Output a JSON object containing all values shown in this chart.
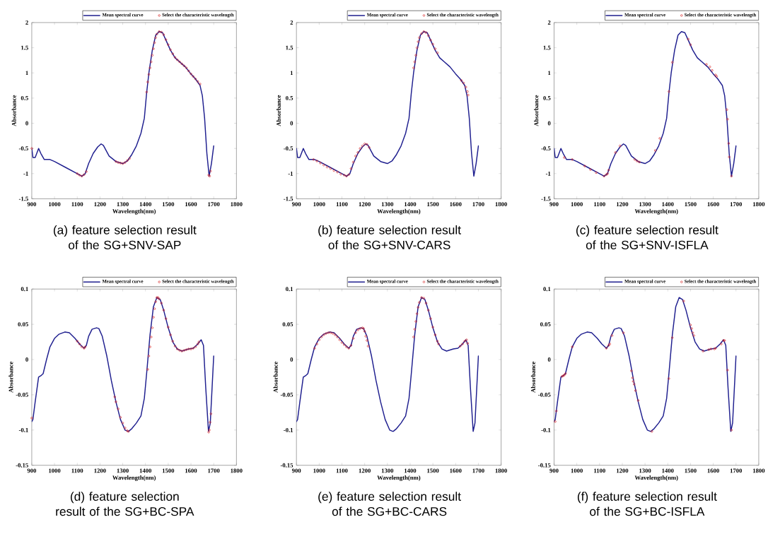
{
  "chart_data": [
    {
      "type": "line",
      "xlabel": "Wavelength(nm)",
      "ylabel": "Absorbance",
      "annotations": [
        "(a) feature selection result of the SG+SNV-SAP"
      ],
      "xlim": [
        900,
        1800
      ],
      "xticks": [
        900,
        1000,
        1100,
        1200,
        1300,
        1400,
        1500,
        1600,
        1700,
        1800
      ],
      "ylim": [
        -1.5,
        2
      ],
      "yticks": [
        -1.5,
        -1,
        -0.5,
        0,
        0.5,
        1,
        1.5,
        2
      ],
      "legend": "top right",
      "series": [
        {
          "name": "Mean spectral curve",
          "color": "#1f1f8f",
          "marker": "none",
          "line_style": "solid",
          "x": [
            900,
            905,
            915,
            930,
            940,
            955,
            980,
            1000,
            1050,
            1100,
            1120,
            1135,
            1150,
            1170,
            1190,
            1205,
            1215,
            1240,
            1270,
            1300,
            1320,
            1340,
            1360,
            1380,
            1395,
            1405,
            1415,
            1430,
            1445,
            1460,
            1475,
            1490,
            1510,
            1530,
            1550,
            1575,
            1600,
            1620,
            1640,
            1650,
            1660,
            1670,
            1680,
            1690,
            1700
          ],
          "values": [
            -0.5,
            -0.68,
            -0.68,
            -0.5,
            -0.6,
            -0.72,
            -0.72,
            -0.76,
            -0.88,
            -1.0,
            -1.05,
            -1.0,
            -0.8,
            -0.6,
            -0.47,
            -0.41,
            -0.44,
            -0.65,
            -0.76,
            -0.8,
            -0.75,
            -0.62,
            -0.45,
            -0.2,
            0.1,
            0.6,
            1.0,
            1.45,
            1.75,
            1.82,
            1.8,
            1.65,
            1.45,
            1.3,
            1.22,
            1.12,
            0.98,
            0.88,
            0.75,
            0.55,
            0.1,
            -0.6,
            -1.05,
            -0.8,
            -0.45
          ]
        },
        {
          "name": "Select the characteristic wavelength",
          "type": "scatter",
          "color": "#d62020",
          "marker": "circle",
          "x": [
            900,
            1100,
            1110,
            1120,
            1130,
            1140,
            1270,
            1280,
            1290,
            1300,
            1310,
            1320,
            1330,
            1405,
            1410,
            1415,
            1420,
            1425,
            1430,
            1435,
            1440,
            1445,
            1450,
            1460,
            1470,
            1480,
            1490,
            1500,
            1510,
            1520,
            1530,
            1540,
            1550,
            1560,
            1570,
            1580,
            1590,
            1600,
            1610,
            1620,
            1630,
            1640,
            1678,
            1682,
            1686
          ],
          "values": [
            -0.5,
            -1.0,
            -1.03,
            -1.05,
            -1.02,
            -0.96,
            -0.76,
            -0.78,
            -0.79,
            -0.8,
            -0.78,
            -0.74,
            -0.7,
            0.62,
            0.82,
            0.97,
            1.1,
            1.22,
            1.35,
            1.48,
            1.6,
            1.7,
            1.77,
            1.82,
            1.81,
            1.76,
            1.66,
            1.56,
            1.46,
            1.38,
            1.31,
            1.26,
            1.22,
            1.18,
            1.14,
            1.1,
            1.04,
            0.98,
            0.93,
            0.88,
            0.83,
            0.78,
            -1.03,
            -1.05,
            -0.95
          ]
        }
      ]
    },
    {
      "type": "line",
      "xlabel": "Wavelength(nm)",
      "ylabel": "Absorbance",
      "annotations": [
        "(b) feature selection result of the SG+SNV-CARS"
      ],
      "xlim": [
        900,
        1800
      ],
      "xticks": [
        900,
        1000,
        1100,
        1200,
        1300,
        1400,
        1500,
        1600,
        1700,
        1800
      ],
      "ylim": [
        -1.5,
        2
      ],
      "yticks": [
        -1.5,
        -1,
        -0.5,
        0,
        0.5,
        1,
        1.5,
        2
      ],
      "legend": "top right",
      "series": [
        {
          "name": "Mean spectral curve",
          "color": "#1f1f8f",
          "marker": "none",
          "line_style": "solid",
          "x": [
            900,
            905,
            915,
            930,
            940,
            955,
            980,
            1000,
            1050,
            1100,
            1120,
            1135,
            1150,
            1170,
            1190,
            1205,
            1215,
            1240,
            1270,
            1300,
            1320,
            1340,
            1360,
            1380,
            1395,
            1405,
            1415,
            1430,
            1445,
            1460,
            1475,
            1490,
            1510,
            1530,
            1550,
            1575,
            1600,
            1620,
            1640,
            1650,
            1660,
            1670,
            1680,
            1690,
            1700
          ],
          "values": [
            -0.5,
            -0.68,
            -0.68,
            -0.5,
            -0.6,
            -0.72,
            -0.72,
            -0.76,
            -0.88,
            -1.0,
            -1.05,
            -1.0,
            -0.8,
            -0.6,
            -0.47,
            -0.41,
            -0.44,
            -0.65,
            -0.76,
            -0.8,
            -0.75,
            -0.62,
            -0.45,
            -0.2,
            0.1,
            0.6,
            1.0,
            1.45,
            1.75,
            1.82,
            1.8,
            1.65,
            1.45,
            1.3,
            1.22,
            1.12,
            0.98,
            0.88,
            0.75,
            0.55,
            0.1,
            -0.6,
            -1.05,
            -0.8,
            -0.45
          ]
        },
        {
          "name": "Select the characteristic wavelength",
          "type": "scatter",
          "color": "#d62020",
          "marker": "circle",
          "x": [
            975,
            990,
            1005,
            1020,
            1035,
            1050,
            1065,
            1080,
            1095,
            1110,
            1120,
            1130,
            1140,
            1150,
            1160,
            1170,
            1180,
            1190,
            1200,
            1210,
            1220,
            1415,
            1420,
            1425,
            1430,
            1435,
            1440,
            1450,
            1460,
            1470,
            1480,
            1490,
            1500,
            1510,
            1520,
            1625,
            1635,
            1645,
            1652,
            1655
          ],
          "values": [
            -0.72,
            -0.75,
            -0.79,
            -0.83,
            -0.87,
            -0.9,
            -0.94,
            -0.97,
            -1.01,
            -1.03,
            -1.05,
            -1.02,
            -0.9,
            -0.77,
            -0.65,
            -0.58,
            -0.5,
            -0.45,
            -0.41,
            -0.42,
            -0.48,
            1.1,
            1.22,
            1.35,
            1.5,
            1.62,
            1.7,
            1.78,
            1.82,
            1.8,
            1.74,
            1.65,
            1.57,
            1.48,
            1.4,
            0.85,
            0.8,
            0.72,
            0.63,
            0.56
          ]
        }
      ]
    },
    {
      "type": "line",
      "xlabel": "Wavelength(nm)",
      "ylabel": "Absorbance",
      "annotations": [
        "(c) feature selection result of the SG+SNV-ISFLA"
      ],
      "xlim": [
        900,
        1800
      ],
      "xticks": [
        900,
        1000,
        1100,
        1200,
        1300,
        1400,
        1500,
        1600,
        1700,
        1800
      ],
      "ylim": [
        -1.5,
        2
      ],
      "yticks": [
        -1.5,
        -1,
        -0.5,
        0,
        0.5,
        1,
        1.5,
        2
      ],
      "legend": "top right",
      "series": [
        {
          "name": "Mean spectral curve",
          "color": "#1f1f8f",
          "marker": "none",
          "line_style": "solid",
          "x": [
            900,
            905,
            915,
            930,
            940,
            955,
            980,
            1000,
            1050,
            1100,
            1120,
            1135,
            1150,
            1170,
            1190,
            1205,
            1215,
            1240,
            1270,
            1300,
            1320,
            1340,
            1360,
            1380,
            1395,
            1405,
            1415,
            1430,
            1445,
            1460,
            1475,
            1490,
            1510,
            1530,
            1550,
            1575,
            1600,
            1620,
            1640,
            1650,
            1660,
            1670,
            1680,
            1690,
            1700
          ],
          "values": [
            -0.5,
            -0.68,
            -0.68,
            -0.5,
            -0.6,
            -0.72,
            -0.72,
            -0.76,
            -0.88,
            -1.0,
            -1.05,
            -1.0,
            -0.8,
            -0.6,
            -0.47,
            -0.41,
            -0.44,
            -0.65,
            -0.76,
            -0.8,
            -0.75,
            -0.62,
            -0.45,
            -0.2,
            0.1,
            0.6,
            1.0,
            1.45,
            1.75,
            1.82,
            1.8,
            1.65,
            1.45,
            1.3,
            1.22,
            1.12,
            0.98,
            0.88,
            0.75,
            0.55,
            0.1,
            -0.6,
            -1.05,
            -0.8,
            -0.45
          ]
        },
        {
          "name": "Select the characteristic wavelength",
          "type": "scatter",
          "color": "#d62020",
          "marker": "circle",
          "x": [
            945,
            980,
            1035,
            1060,
            1085,
            1120,
            1130,
            1135,
            1140,
            1170,
            1190,
            1255,
            1265,
            1275,
            1345,
            1365,
            1405,
            1420,
            1490,
            1500,
            1570,
            1585,
            1595,
            1610,
            1615,
            1660,
            1663,
            1668,
            1670,
            1680
          ],
          "values": [
            -0.68,
            -0.72,
            -0.85,
            -0.92,
            -0.98,
            -1.05,
            -1.02,
            -1.0,
            -0.93,
            -0.58,
            -0.45,
            -0.72,
            -0.75,
            -0.77,
            -0.54,
            -0.3,
            0.63,
            1.21,
            1.67,
            1.56,
            1.17,
            1.12,
            1.05,
            0.96,
            0.93,
            0.27,
            0.08,
            -0.4,
            -0.67,
            -1.05
          ]
        }
      ]
    },
    {
      "type": "line",
      "xlabel": "Wavelength(nm)",
      "ylabel": "Absorbance",
      "annotations": [
        "(d) feature selection result of the SG+BC-SPA"
      ],
      "xlim": [
        900,
        1800
      ],
      "xticks": [
        900,
        1000,
        1100,
        1200,
        1300,
        1400,
        1500,
        1600,
        1700,
        1800
      ],
      "ylim": [
        -0.15,
        0.1
      ],
      "yticks": [
        -0.15,
        -0.1,
        -0.05,
        0,
        0.05,
        0.1
      ],
      "legend": "top right",
      "series": [
        {
          "name": "Mean spectral curve",
          "color": "#1f1f8f",
          "marker": "none",
          "line_style": "solid",
          "x": [
            900,
            905,
            915,
            930,
            940,
            950,
            965,
            980,
            1000,
            1020,
            1045,
            1065,
            1090,
            1110,
            1130,
            1140,
            1150,
            1165,
            1185,
            1195,
            1210,
            1230,
            1250,
            1270,
            1290,
            1310,
            1325,
            1340,
            1360,
            1380,
            1395,
            1405,
            1420,
            1435,
            1450,
            1465,
            1480,
            1500,
            1520,
            1540,
            1560,
            1590,
            1610,
            1630,
            1645,
            1655,
            1665,
            1677,
            1685,
            1700
          ],
          "values": [
            -0.088,
            -0.085,
            -0.06,
            -0.025,
            -0.023,
            -0.02,
            0.0,
            0.018,
            0.03,
            0.036,
            0.039,
            0.038,
            0.03,
            0.022,
            0.016,
            0.02,
            0.033,
            0.043,
            0.045,
            0.044,
            0.033,
            0.005,
            -0.03,
            -0.06,
            -0.085,
            -0.1,
            -0.102,
            -0.098,
            -0.09,
            -0.08,
            -0.055,
            -0.02,
            0.035,
            0.075,
            0.088,
            0.085,
            0.07,
            0.045,
            0.025,
            0.015,
            0.012,
            0.015,
            0.016,
            0.022,
            0.028,
            0.02,
            -0.04,
            -0.102,
            -0.09,
            0.005
          ]
        },
        {
          "name": "Select the characteristic wavelength",
          "type": "scatter",
          "color": "#d62020",
          "marker": "circle",
          "x": [
            900,
            1100,
            1110,
            1120,
            1130,
            1135,
            1265,
            1270,
            1280,
            1290,
            1300,
            1310,
            1320,
            1325,
            1410,
            1415,
            1420,
            1425,
            1430,
            1435,
            1440,
            1445,
            1450,
            1455,
            1460,
            1470,
            1480,
            1490,
            1500,
            1510,
            1520,
            1530,
            1540,
            1550,
            1560,
            1570,
            1580,
            1590,
            1600,
            1610,
            1620,
            1630,
            1635,
            1678,
            1681,
            1684,
            1688
          ],
          "values": [
            -0.083,
            0.026,
            0.022,
            0.018,
            0.016,
            0.018,
            -0.053,
            -0.06,
            -0.07,
            -0.082,
            -0.09,
            -0.097,
            -0.101,
            -0.102,
            -0.014,
            0.005,
            0.018,
            0.032,
            0.045,
            0.06,
            0.072,
            0.082,
            0.088,
            0.088,
            0.086,
            0.08,
            0.07,
            0.058,
            0.046,
            0.035,
            0.026,
            0.019,
            0.015,
            0.013,
            0.012,
            0.013,
            0.014,
            0.015,
            0.015,
            0.016,
            0.018,
            0.022,
            0.025,
            -0.103,
            -0.1,
            -0.089,
            -0.077
          ]
        }
      ]
    },
    {
      "type": "line",
      "xlabel": "Wavelength(nm)",
      "ylabel": "Absorbance",
      "annotations": [
        "(e) feature selection result of the SG+BC-CARS"
      ],
      "xlim": [
        900,
        1800
      ],
      "xticks": [
        900,
        1000,
        1100,
        1200,
        1300,
        1400,
        1500,
        1600,
        1700,
        1800
      ],
      "ylim": [
        -0.15,
        0.1
      ],
      "yticks": [
        -0.15,
        -0.1,
        -0.05,
        0,
        0.05,
        0.1
      ],
      "legend": "top right",
      "series": [
        {
          "name": "Mean spectral curve",
          "color": "#1f1f8f",
          "marker": "none",
          "line_style": "solid",
          "x": [
            900,
            905,
            915,
            930,
            940,
            950,
            965,
            980,
            1000,
            1020,
            1045,
            1065,
            1090,
            1110,
            1130,
            1140,
            1150,
            1165,
            1185,
            1195,
            1210,
            1230,
            1250,
            1270,
            1290,
            1310,
            1325,
            1340,
            1360,
            1380,
            1395,
            1405,
            1420,
            1435,
            1450,
            1465,
            1480,
            1500,
            1520,
            1540,
            1560,
            1590,
            1610,
            1630,
            1645,
            1655,
            1665,
            1677,
            1685,
            1700
          ],
          "values": [
            -0.088,
            -0.085,
            -0.06,
            -0.025,
            -0.023,
            -0.02,
            0.0,
            0.018,
            0.03,
            0.036,
            0.039,
            0.038,
            0.03,
            0.022,
            0.016,
            0.02,
            0.033,
            0.043,
            0.045,
            0.044,
            0.033,
            0.005,
            -0.03,
            -0.06,
            -0.085,
            -0.1,
            -0.102,
            -0.098,
            -0.09,
            -0.08,
            -0.055,
            -0.02,
            0.035,
            0.075,
            0.088,
            0.085,
            0.07,
            0.045,
            0.025,
            0.015,
            0.012,
            0.015,
            0.016,
            0.022,
            0.028,
            0.02,
            -0.04,
            -0.102,
            -0.09,
            0.005
          ]
        },
        {
          "name": "Select the characteristic wavelength",
          "type": "scatter",
          "color": "#d62020",
          "marker": "circle",
          "x": [
            980,
            990,
            1000,
            1010,
            1020,
            1030,
            1040,
            1050,
            1060,
            1070,
            1080,
            1090,
            1100,
            1110,
            1120,
            1130,
            1140,
            1150,
            1160,
            1170,
            1180,
            1190,
            1195,
            1200,
            1205,
            1210,
            1215,
            1415,
            1420,
            1425,
            1430,
            1435,
            1440,
            1450,
            1460,
            1470,
            1480,
            1490,
            1500,
            1510,
            1520,
            1525,
            1620,
            1630,
            1640,
            1648,
            1653
          ],
          "values": [
            0.016,
            0.022,
            0.028,
            0.032,
            0.035,
            0.037,
            0.038,
            0.038,
            0.037,
            0.035,
            0.032,
            0.028,
            0.024,
            0.021,
            0.018,
            0.016,
            0.02,
            0.03,
            0.038,
            0.042,
            0.044,
            0.045,
            0.044,
            0.04,
            0.033,
            0.027,
            0.019,
            0.032,
            0.043,
            0.054,
            0.065,
            0.074,
            0.081,
            0.088,
            0.087,
            0.08,
            0.07,
            0.058,
            0.046,
            0.035,
            0.026,
            0.022,
            0.019,
            0.022,
            0.026,
            0.028,
            0.023
          ]
        }
      ]
    },
    {
      "type": "line",
      "xlabel": "Wavelength(nm)",
      "ylabel": "Absorbance",
      "annotations": [
        "(f) feature selection result of the SG+BC-ISFLA"
      ],
      "xlim": [
        900,
        1800
      ],
      "xticks": [
        900,
        1000,
        1100,
        1200,
        1300,
        1400,
        1500,
        1600,
        1700,
        1800
      ],
      "ylim": [
        -0.15,
        0.1
      ],
      "yticks": [
        -0.15,
        -0.1,
        -0.05,
        0,
        0.05,
        0.1
      ],
      "legend": "top right",
      "series": [
        {
          "name": "Mean spectral curve",
          "color": "#1f1f8f",
          "marker": "none",
          "line_style": "solid",
          "x": [
            900,
            905,
            915,
            930,
            940,
            950,
            965,
            980,
            1000,
            1020,
            1045,
            1065,
            1090,
            1110,
            1130,
            1140,
            1150,
            1165,
            1185,
            1195,
            1210,
            1230,
            1250,
            1270,
            1290,
            1310,
            1325,
            1340,
            1360,
            1380,
            1395,
            1405,
            1420,
            1435,
            1450,
            1465,
            1480,
            1500,
            1520,
            1540,
            1560,
            1590,
            1610,
            1630,
            1645,
            1655,
            1665,
            1677,
            1685,
            1700
          ],
          "values": [
            -0.088,
            -0.085,
            -0.06,
            -0.025,
            -0.023,
            -0.02,
            0.0,
            0.018,
            0.03,
            0.036,
            0.039,
            0.038,
            0.03,
            0.022,
            0.016,
            0.02,
            0.033,
            0.043,
            0.045,
            0.044,
            0.033,
            0.005,
            -0.03,
            -0.06,
            -0.085,
            -0.1,
            -0.102,
            -0.098,
            -0.09,
            -0.08,
            -0.055,
            -0.02,
            0.035,
            0.075,
            0.088,
            0.085,
            0.07,
            0.045,
            0.025,
            0.015,
            0.012,
            0.015,
            0.016,
            0.022,
            0.028,
            0.02,
            -0.04,
            -0.102,
            -0.09,
            0.005
          ]
        },
        {
          "name": "Select the characteristic wavelength",
          "type": "scatter",
          "color": "#d62020",
          "marker": "circle",
          "x": [
            905,
            910,
            935,
            940,
            945,
            950,
            980,
            1130,
            1140,
            1145,
            1155,
            1205,
            1240,
            1245,
            1248,
            1252,
            1258,
            1270,
            1330,
            1405,
            1420,
            1470,
            1500,
            1505,
            1510,
            1515,
            1555,
            1580,
            1590,
            1605,
            1610,
            1635,
            1645,
            1650,
            1663,
            1680
          ],
          "values": [
            -0.088,
            -0.073,
            -0.024,
            -0.023,
            -0.022,
            -0.02,
            0.018,
            0.016,
            0.02,
            0.022,
            0.034,
            0.038,
            -0.016,
            -0.026,
            -0.031,
            -0.035,
            -0.044,
            -0.058,
            -0.102,
            -0.027,
            0.031,
            0.083,
            0.049,
            0.044,
            0.038,
            0.034,
            0.012,
            0.014,
            0.015,
            0.015,
            0.016,
            0.022,
            0.027,
            0.027,
            -0.015,
            -0.1
          ]
        }
      ]
    }
  ]
}
